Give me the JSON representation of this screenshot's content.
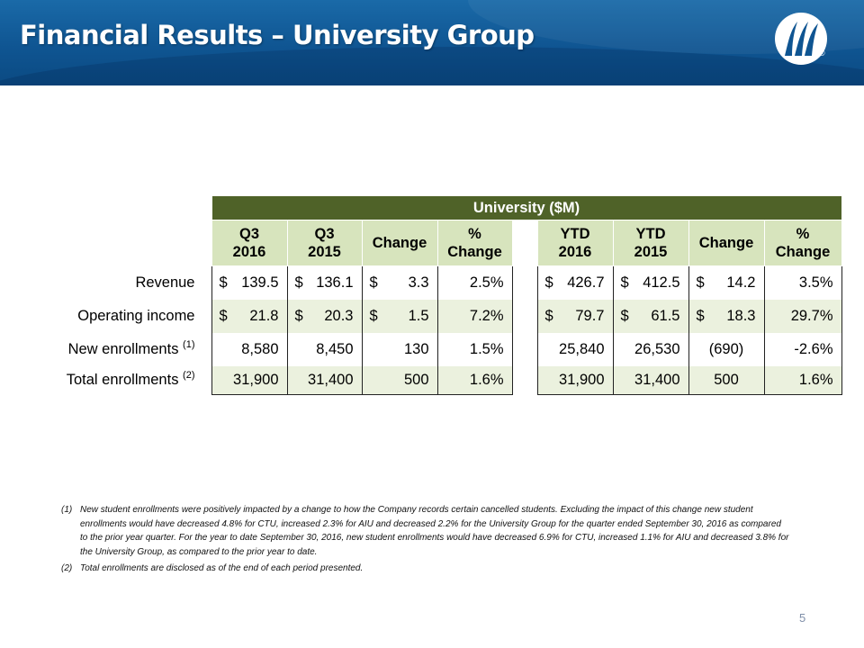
{
  "title": "Financial Results – University Group",
  "logo": {
    "icon": "company-logo-icon",
    "registered": "®"
  },
  "table": {
    "group_header": "University ($M)",
    "columns": [
      {
        "line1": "Q3",
        "line2": "2016"
      },
      {
        "line1": "Q3",
        "line2": "2015"
      },
      {
        "line1": "Change",
        "line2": ""
      },
      {
        "line1": "%",
        "line2": "Change"
      },
      {
        "line1": "YTD",
        "line2": "2016"
      },
      {
        "line1": "YTD",
        "line2": "2015"
      },
      {
        "line1": "Change",
        "line2": ""
      },
      {
        "line1": "%",
        "line2": "Change"
      }
    ],
    "rows": [
      {
        "label": "Revenue",
        "note": "",
        "shaded": false,
        "cells": [
          {
            "cur": "$",
            "val": "139.5"
          },
          {
            "cur": "$",
            "val": "136.1"
          },
          {
            "cur": "$",
            "val": "3.3"
          },
          {
            "cur": "",
            "val": "2.5%"
          },
          {
            "cur": "$",
            "val": "426.7"
          },
          {
            "cur": "$",
            "val": "412.5"
          },
          {
            "cur": "$",
            "val": "14.2"
          },
          {
            "cur": "",
            "val": "3.5%"
          }
        ]
      },
      {
        "label": "Operating income",
        "note": "",
        "shaded": true,
        "cells": [
          {
            "cur": "$",
            "val": "21.8"
          },
          {
            "cur": "$",
            "val": "20.3"
          },
          {
            "cur": "$",
            "val": "1.5"
          },
          {
            "cur": "",
            "val": "7.2%"
          },
          {
            "cur": "$",
            "val": "79.7"
          },
          {
            "cur": "$",
            "val": "61.5"
          },
          {
            "cur": "$",
            "val": "18.3"
          },
          {
            "cur": "",
            "val": "29.7%"
          }
        ]
      },
      {
        "label": "New enrollments",
        "note": "(1)",
        "shaded": false,
        "cells": [
          {
            "cur": "",
            "val": "8,580"
          },
          {
            "cur": "",
            "val": "8,450"
          },
          {
            "cur": "",
            "val": "130"
          },
          {
            "cur": "",
            "val": "1.5%"
          },
          {
            "cur": "",
            "val": "25,840"
          },
          {
            "cur": "",
            "val": "26,530"
          },
          {
            "cur": "",
            "val": "(690)",
            "center": true
          },
          {
            "cur": "",
            "val": "-2.6%"
          }
        ]
      },
      {
        "label": "Total enrollments",
        "note": "(2)",
        "shaded": true,
        "cells": [
          {
            "cur": "",
            "val": "31,900"
          },
          {
            "cur": "",
            "val": "31,400"
          },
          {
            "cur": "",
            "val": "500"
          },
          {
            "cur": "",
            "val": "1.6%"
          },
          {
            "cur": "",
            "val": "31,900"
          },
          {
            "cur": "",
            "val": "31,400"
          },
          {
            "cur": "",
            "val": "500",
            "center": true
          },
          {
            "cur": "",
            "val": "1.6%"
          }
        ]
      }
    ]
  },
  "footnotes": [
    {
      "num": "(1)",
      "text": "New student enrollments were positively impacted by a change to how the Company records certain cancelled students. Excluding the impact of this change new student enrollments would have decreased 4.8% for CTU, increased 2.3% for AIU and decreased 2.2% for the University Group for the quarter ended September 30, 2016 as compared to the prior year quarter.  For the year to date September 30, 2016, new student enrollments would have decreased 6.9% for CTU, increased 1.1% for AIU and decreased 3.8% for the University Group, as compared to the prior year to date."
    },
    {
      "num": "(2)",
      "text": "Total enrollments are disclosed as of the end of each period presented."
    }
  ],
  "page_number": "5",
  "colors": {
    "header_blue": "#0f5592",
    "dark_green": "#4f6228",
    "light_green": "#d7e4bd",
    "row_shade": "#ebf1de"
  }
}
